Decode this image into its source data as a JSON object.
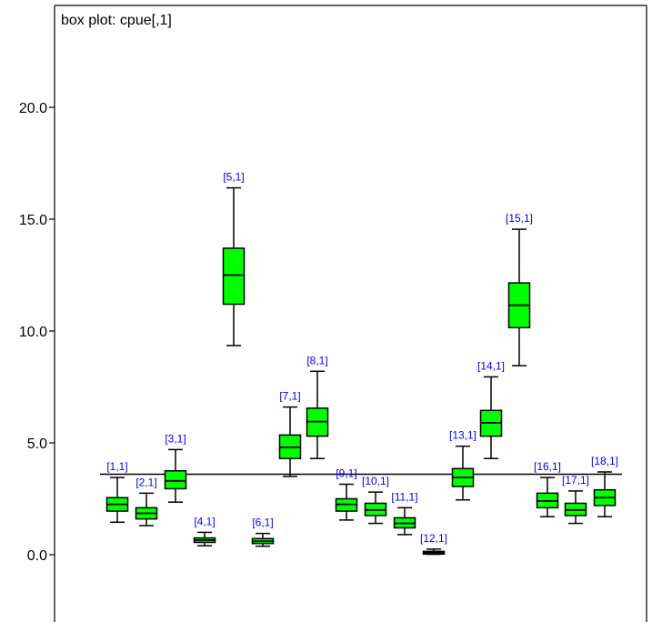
{
  "chart_data": {
    "type": "box",
    "title": "box plot: cpue[,1]",
    "ylim": [
      -1.9,
      24.5
    ],
    "yticks": [
      0.0,
      5.0,
      10.0,
      15.0,
      20.0
    ],
    "ytick_labels": [
      "0.0",
      "5.0",
      "10.0",
      "15.0",
      "20.0"
    ],
    "reference_line": 3.6,
    "box_color": "#00ff00",
    "label_color": "#0000ee",
    "boxes": [
      {
        "label": "[1,1]",
        "whisker_low": 1.45,
        "q1": 1.95,
        "median": 2.25,
        "q3": 2.55,
        "whisker_high": 3.45
      },
      {
        "label": "[2,1]",
        "whisker_low": 1.3,
        "q1": 1.6,
        "median": 1.85,
        "q3": 2.1,
        "whisker_high": 2.75
      },
      {
        "label": "[3,1]",
        "whisker_low": 2.35,
        "q1": 2.95,
        "median": 3.3,
        "q3": 3.75,
        "whisker_high": 4.7
      },
      {
        "label": "[4,1]",
        "whisker_low": 0.4,
        "q1": 0.55,
        "median": 0.65,
        "q3": 0.75,
        "whisker_high": 1.0
      },
      {
        "label": "[5,1]",
        "whisker_low": 9.35,
        "q1": 11.2,
        "median": 12.5,
        "q3": 13.7,
        "whisker_high": 16.4
      },
      {
        "label": "[6,1]",
        "whisker_low": 0.38,
        "q1": 0.5,
        "median": 0.6,
        "q3": 0.72,
        "whisker_high": 0.95
      },
      {
        "label": "[7,1]",
        "whisker_low": 3.5,
        "q1": 4.3,
        "median": 4.8,
        "q3": 5.35,
        "whisker_high": 6.6
      },
      {
        "label": "[8,1]",
        "whisker_low": 4.3,
        "q1": 5.3,
        "median": 5.95,
        "q3": 6.55,
        "whisker_high": 8.2
      },
      {
        "label": "[9,1]",
        "whisker_low": 1.55,
        "q1": 1.95,
        "median": 2.25,
        "q3": 2.5,
        "whisker_high": 3.15
      },
      {
        "label": "[10,1]",
        "whisker_low": 1.4,
        "q1": 1.75,
        "median": 2.0,
        "q3": 2.3,
        "whisker_high": 2.8
      },
      {
        "label": "[11,1]",
        "whisker_low": 0.9,
        "q1": 1.2,
        "median": 1.4,
        "q3": 1.65,
        "whisker_high": 2.1
      },
      {
        "label": "[12,1]",
        "whisker_low": 0.02,
        "q1": 0.07,
        "median": 0.1,
        "q3": 0.15,
        "whisker_high": 0.25
      },
      {
        "label": "[13,1]",
        "whisker_low": 2.45,
        "q1": 3.05,
        "median": 3.45,
        "q3": 3.85,
        "whisker_high": 4.85
      },
      {
        "label": "[14,1]",
        "whisker_low": 4.3,
        "q1": 5.3,
        "median": 5.9,
        "q3": 6.45,
        "whisker_high": 7.95
      },
      {
        "label": "[15,1]",
        "whisker_low": 8.45,
        "q1": 10.15,
        "median": 11.15,
        "q3": 12.15,
        "whisker_high": 14.55
      },
      {
        "label": "[16,1]",
        "whisker_low": 1.7,
        "q1": 2.1,
        "median": 2.4,
        "q3": 2.75,
        "whisker_high": 3.45
      },
      {
        "label": "[17,1]",
        "whisker_low": 1.4,
        "q1": 1.75,
        "median": 2.0,
        "q3": 2.3,
        "whisker_high": 2.85
      },
      {
        "label": "[18,1]",
        "whisker_low": 1.7,
        "q1": 2.2,
        "median": 2.55,
        "q3": 2.9,
        "whisker_high": 3.7
      }
    ]
  }
}
